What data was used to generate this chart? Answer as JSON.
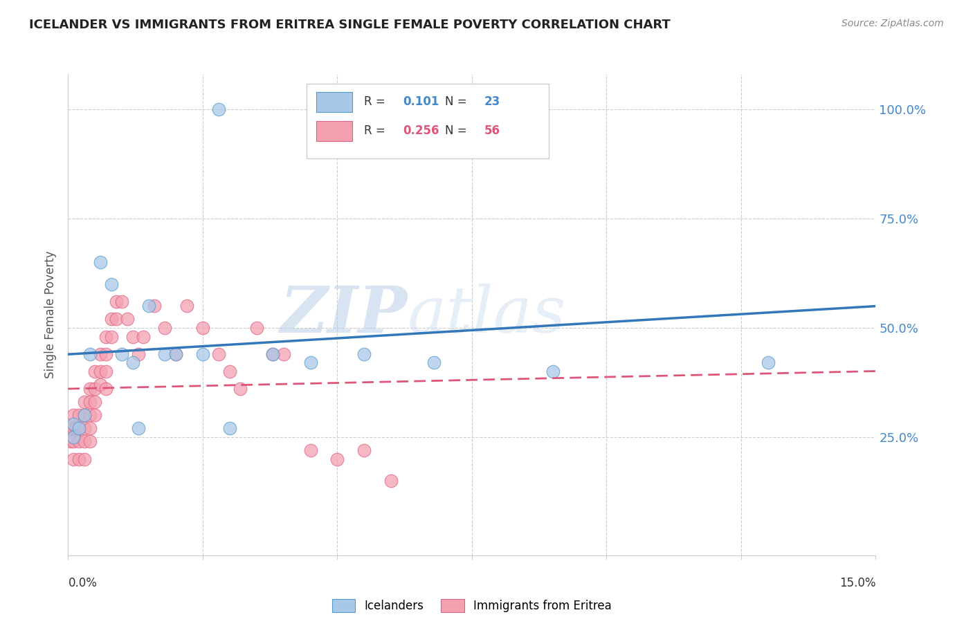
{
  "title": "ICELANDER VS IMMIGRANTS FROM ERITREA SINGLE FEMALE POVERTY CORRELATION CHART",
  "source": "Source: ZipAtlas.com",
  "ylabel": "Single Female Poverty",
  "xlim": [
    0.0,
    0.15
  ],
  "ylim": [
    -0.02,
    1.08
  ],
  "ylabel_right_labels": [
    "100.0%",
    "75.0%",
    "50.0%",
    "25.0%"
  ],
  "ylabel_right_values": [
    1.0,
    0.75,
    0.5,
    0.25
  ],
  "legend_r_blue": "0.101",
  "legend_n_blue": "23",
  "legend_r_pink": "0.256",
  "legend_n_pink": "56",
  "blue_fill": "#a8c8e8",
  "blue_edge": "#5599cc",
  "pink_fill": "#f4a0b0",
  "pink_edge": "#e06080",
  "blue_line_color": "#3377bb",
  "pink_line_color": "#dd5577",
  "watermark_zip": "ZIP",
  "watermark_atlas": "atlas",
  "icelanders_x": [
    0.028,
    0.05,
    0.001,
    0.001,
    0.002,
    0.003,
    0.004,
    0.006,
    0.008,
    0.01,
    0.012,
    0.013,
    0.015,
    0.018,
    0.02,
    0.025,
    0.03,
    0.038,
    0.045,
    0.055,
    0.068,
    0.09,
    0.13
  ],
  "icelanders_y": [
    1.0,
    1.0,
    0.28,
    0.25,
    0.27,
    0.3,
    0.44,
    0.65,
    0.6,
    0.44,
    0.42,
    0.27,
    0.55,
    0.44,
    0.44,
    0.44,
    0.27,
    0.44,
    0.42,
    0.44,
    0.42,
    0.4,
    0.42
  ],
  "eritrea_x": [
    0.0005,
    0.0005,
    0.001,
    0.001,
    0.001,
    0.001,
    0.0015,
    0.002,
    0.002,
    0.002,
    0.002,
    0.003,
    0.003,
    0.003,
    0.003,
    0.003,
    0.004,
    0.004,
    0.004,
    0.004,
    0.004,
    0.005,
    0.005,
    0.005,
    0.005,
    0.006,
    0.006,
    0.006,
    0.007,
    0.007,
    0.007,
    0.007,
    0.008,
    0.008,
    0.009,
    0.009,
    0.01,
    0.011,
    0.012,
    0.013,
    0.014,
    0.016,
    0.018,
    0.02,
    0.022,
    0.025,
    0.028,
    0.03,
    0.032,
    0.035,
    0.038,
    0.04,
    0.045,
    0.05,
    0.055,
    0.06
  ],
  "eritrea_y": [
    0.27,
    0.24,
    0.3,
    0.27,
    0.24,
    0.2,
    0.27,
    0.3,
    0.27,
    0.24,
    0.2,
    0.33,
    0.3,
    0.27,
    0.24,
    0.2,
    0.36,
    0.33,
    0.3,
    0.27,
    0.24,
    0.4,
    0.36,
    0.33,
    0.3,
    0.44,
    0.4,
    0.37,
    0.48,
    0.44,
    0.4,
    0.36,
    0.52,
    0.48,
    0.56,
    0.52,
    0.56,
    0.52,
    0.48,
    0.44,
    0.48,
    0.55,
    0.5,
    0.44,
    0.55,
    0.5,
    0.44,
    0.4,
    0.36,
    0.5,
    0.44,
    0.44,
    0.22,
    0.2,
    0.22,
    0.15
  ]
}
